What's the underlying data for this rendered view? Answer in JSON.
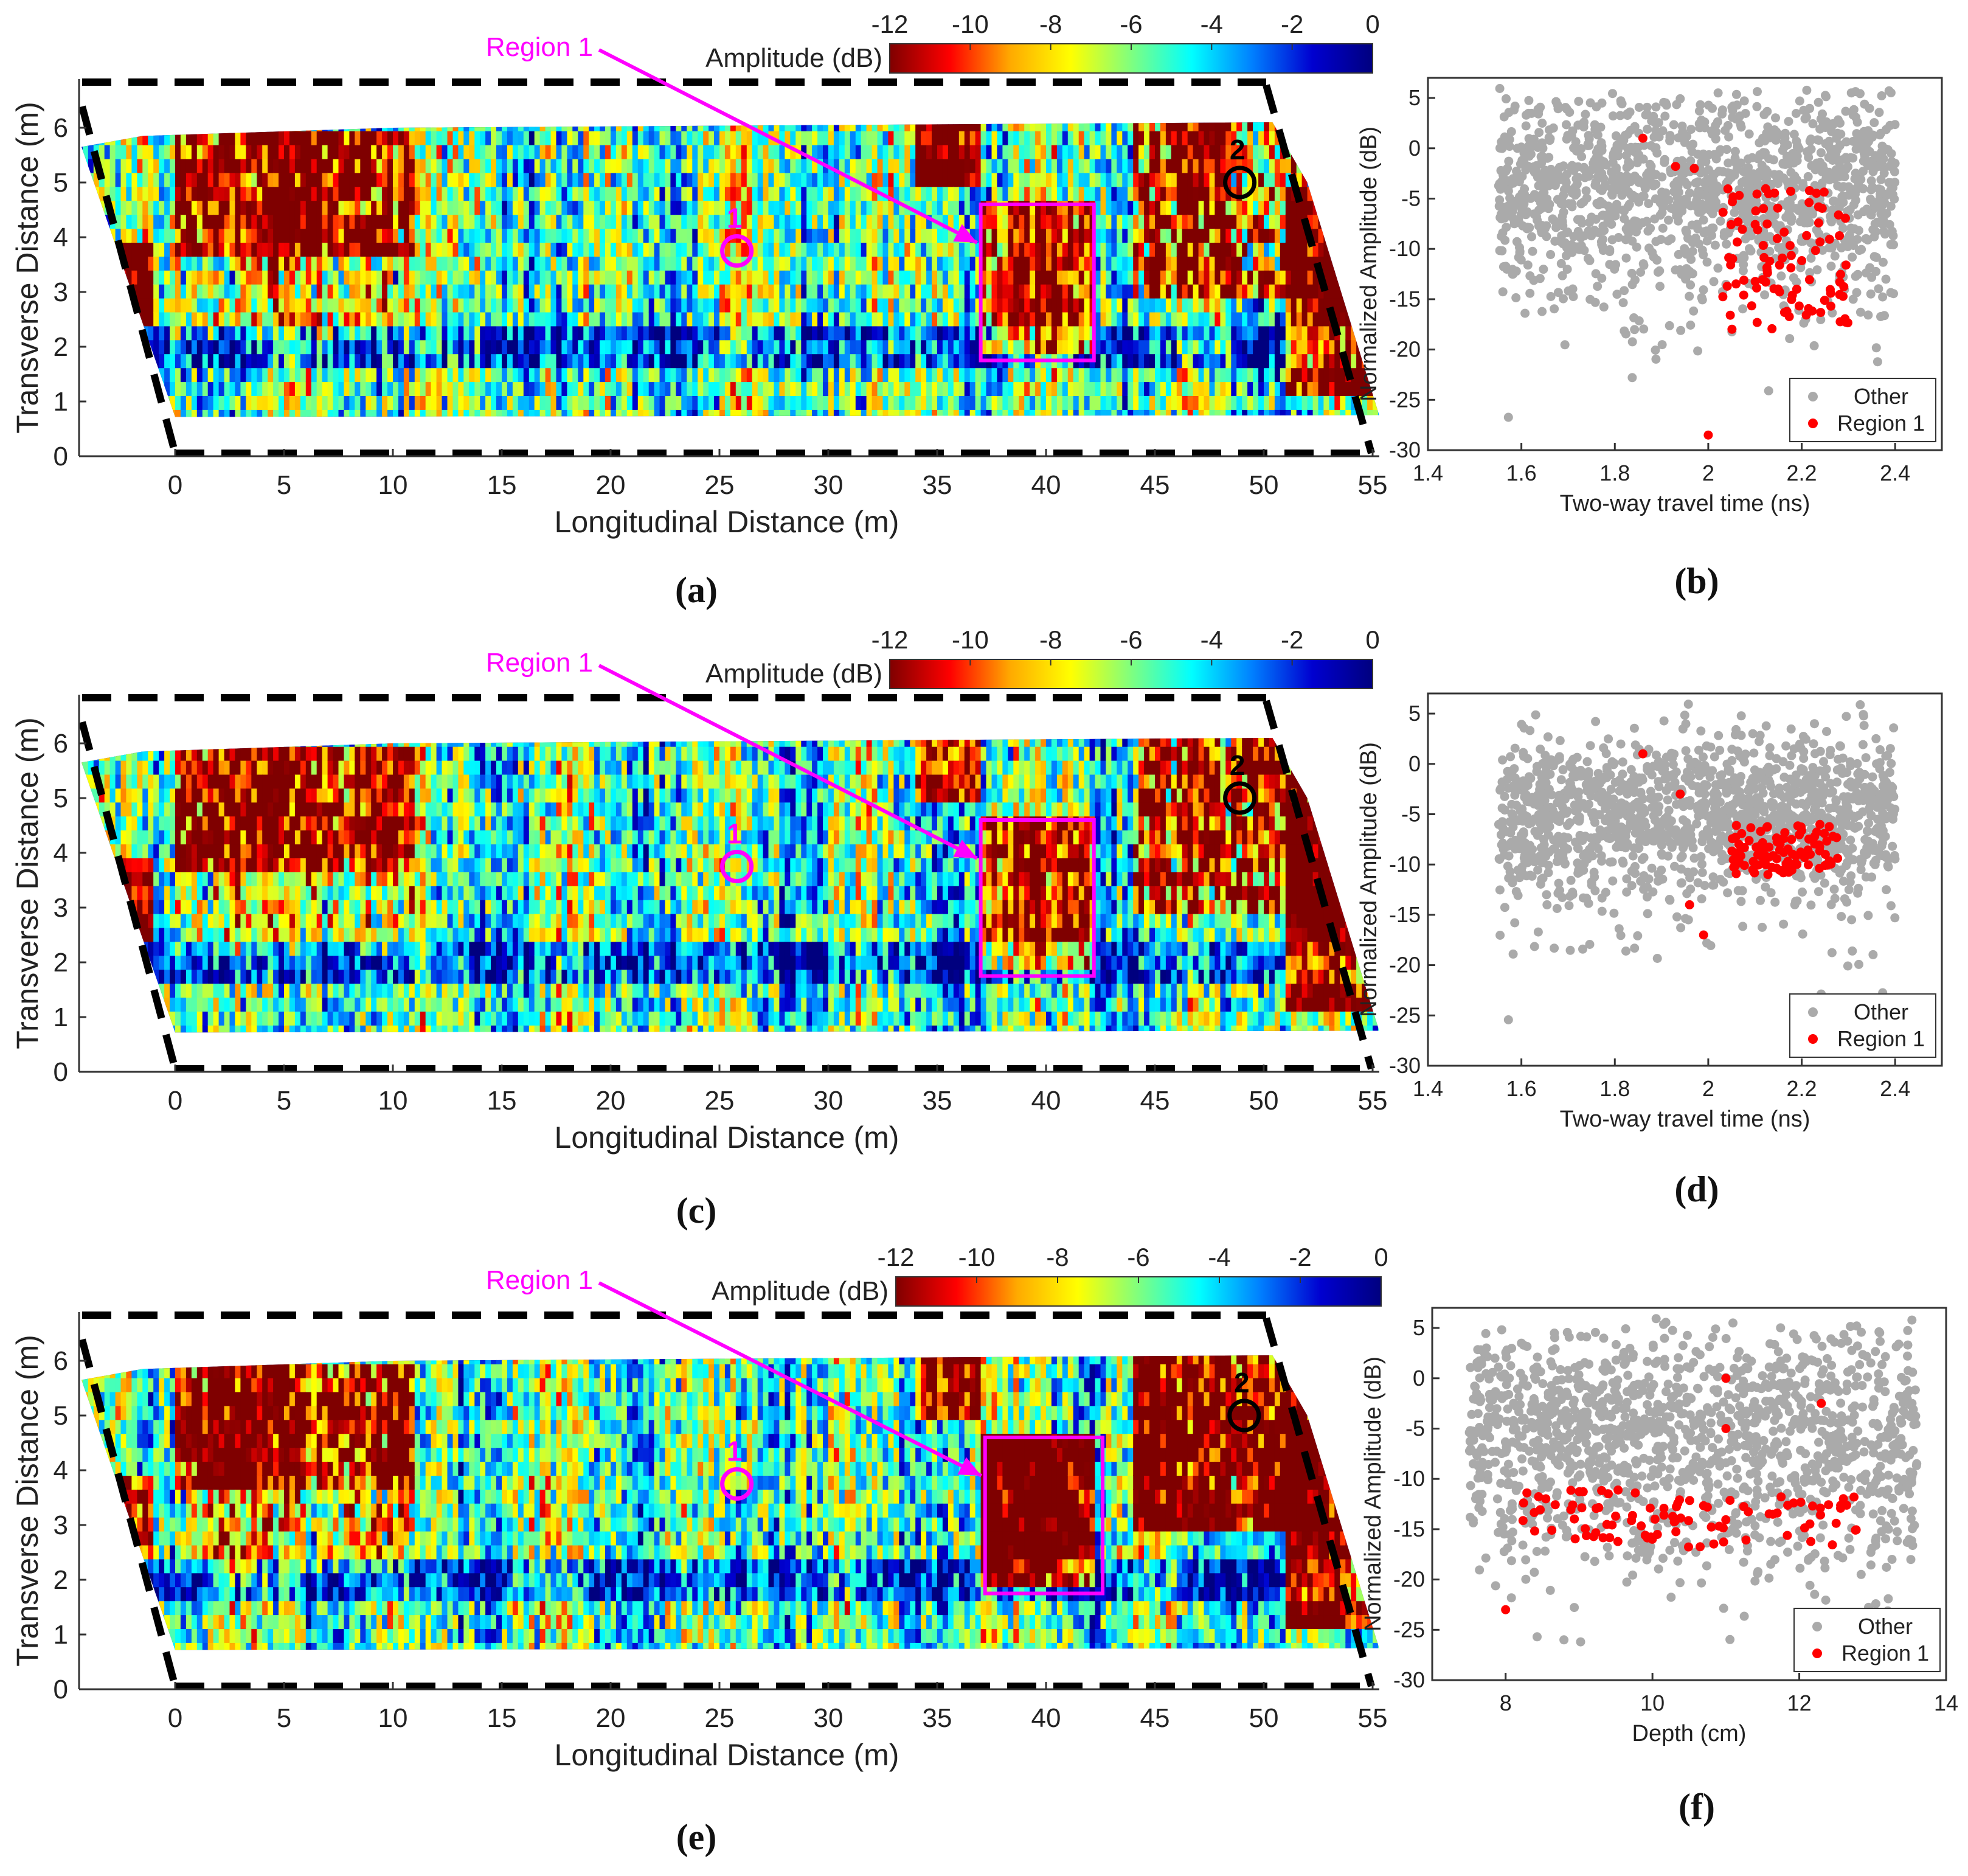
{
  "colors": {
    "colormap": [
      "#7f0000",
      "#ff0000",
      "#ffaa00",
      "#ffff00",
      "#7fff7f",
      "#00ffff",
      "#0080ff",
      "#0000d0",
      "#00007f"
    ],
    "annotation": "#ff00ff",
    "other_points": "#aaaaaa",
    "region_points": "#ff0000",
    "dashed_outline": "#000000"
  },
  "panels": [
    "(a)",
    "(b)",
    "(c)",
    "(d)",
    "(e)",
    "(f)"
  ],
  "chart_data": [
    {
      "id": "a",
      "type": "heatmap",
      "label": "(a)",
      "xlabel": "Longitudinal Distance (m)",
      "ylabel": "Transverse Distance (m)",
      "xticks": [
        0,
        5,
        10,
        15,
        20,
        25,
        30,
        35,
        40,
        45,
        50,
        55
      ],
      "yticks": [
        0,
        1,
        2,
        3,
        4,
        5,
        6
      ],
      "xlim": [
        -4.5,
        55.5
      ],
      "ylim": [
        0,
        6.6
      ],
      "colorbar": {
        "label": "Amplitude (dB)",
        "ticks": [
          -12,
          -10,
          -8,
          -6,
          -4,
          -2,
          0
        ],
        "range": [
          -12,
          0
        ]
      },
      "annotations": {
        "region": "Region 1",
        "point1": "1",
        "point2": "2"
      },
      "region_box": {
        "x": [
          37,
          42.2
        ],
        "y": [
          1.75,
          4.6
        ]
      },
      "point1": {
        "x": 25.8,
        "y": 3.75
      },
      "point2": {
        "x": 48.9,
        "y": 5.0
      }
    },
    {
      "id": "b",
      "type": "scatter",
      "label": "(b)",
      "xlabel": "Two-way travel time (ns)",
      "ylabel": "Normalized Amplitude (dB)",
      "xticks": [
        "1.4",
        "1.6",
        "1.8",
        "2",
        "2.2",
        "2.4"
      ],
      "yticks": [
        5,
        0,
        -5,
        -10,
        -15,
        -20,
        -25,
        -30
      ],
      "xlim": [
        1.4,
        2.5
      ],
      "ylim": [
        -30,
        7
      ],
      "legend": {
        "position": "bottom-right",
        "entries": [
          "Other",
          "Region 1"
        ]
      },
      "other": {
        "x_range": [
          1.55,
          2.4
        ],
        "center_y": -4,
        "spread_y": 5
      },
      "region1": {
        "x_range": [
          2.03,
          2.3
        ],
        "y_range": [
          -18,
          -4
        ],
        "outliers": [
          [
            1.86,
            1
          ],
          [
            1.93,
            -1.8
          ],
          [
            1.97,
            -2
          ],
          [
            2.0,
            -28.5
          ]
        ]
      }
    },
    {
      "id": "c",
      "type": "heatmap",
      "label": "(c)",
      "xlabel": "Longitudinal Distance (m)",
      "ylabel": "Transverse Distance (m)",
      "xticks": [
        0,
        5,
        10,
        15,
        20,
        25,
        30,
        35,
        40,
        45,
        50,
        55
      ],
      "yticks": [
        0,
        1,
        2,
        3,
        4,
        5,
        6
      ],
      "xlim": [
        -4.5,
        55.5
      ],
      "ylim": [
        0,
        6.6
      ],
      "colorbar": {
        "label": "Amplitude (dB)",
        "ticks": [
          -12,
          -10,
          -8,
          -6,
          -4,
          -2,
          0
        ],
        "range": [
          -12,
          0
        ]
      },
      "annotations": {
        "region": "Region 1",
        "point1": "1",
        "point2": "2"
      },
      "region_box": {
        "x": [
          37,
          42.2
        ],
        "y": [
          1.75,
          4.6
        ]
      },
      "point1": {
        "x": 25.8,
        "y": 3.75
      },
      "point2": {
        "x": 48.9,
        "y": 5.0
      }
    },
    {
      "id": "d",
      "type": "scatter",
      "label": "(d)",
      "xlabel": "Two-way travel time (ns)",
      "ylabel": "Normalized Amplitude (dB)",
      "xticks": [
        "1.4",
        "1.6",
        "1.8",
        "2",
        "2.2",
        "2.4"
      ],
      "yticks": [
        5,
        0,
        -5,
        -10,
        -15,
        -20,
        -25,
        -30
      ],
      "xlim": [
        1.4,
        2.5
      ],
      "ylim": [
        -30,
        7
      ],
      "legend": {
        "position": "bottom-right",
        "entries": [
          "Other",
          "Region 1"
        ]
      },
      "other": {
        "x_range": [
          1.55,
          2.4
        ],
        "center_y": -5,
        "spread_y": 4
      },
      "region1": {
        "x_range": [
          2.05,
          2.28
        ],
        "y_range": [
          -11,
          -6
        ],
        "outliers": [
          [
            1.86,
            1
          ],
          [
            1.94,
            -3
          ],
          [
            1.96,
            -14
          ],
          [
            1.99,
            -17
          ]
        ]
      }
    },
    {
      "id": "e",
      "type": "heatmap",
      "label": "(e)",
      "xlabel": "Longitudinal Distance (m)",
      "ylabel": "Transverse Distance (m)",
      "xticks": [
        0,
        5,
        10,
        15,
        20,
        25,
        30,
        35,
        40,
        45,
        50,
        55
      ],
      "yticks": [
        0,
        1,
        2,
        3,
        4,
        5,
        6
      ],
      "xlim": [
        -4.5,
        55.5
      ],
      "ylim": [
        0,
        6.6
      ],
      "colorbar": {
        "label": "Amplitude (dB)",
        "ticks": [
          -12,
          -10,
          -8,
          -6,
          -4,
          -2,
          0
        ],
        "range": [
          -12,
          0
        ]
      },
      "annotations": {
        "region": "Region 1",
        "point1": "1",
        "point2": "2"
      },
      "region_box": {
        "x": [
          37.2,
          42.6
        ],
        "y": [
          1.75,
          4.6
        ]
      },
      "point1": {
        "x": 25.8,
        "y": 3.75
      },
      "point2": {
        "x": 49.1,
        "y": 5.0
      }
    },
    {
      "id": "f",
      "type": "scatter",
      "label": "(f)",
      "xlabel": "Depth (cm)",
      "ylabel": "Normalized Amplitude (dB)",
      "xticks": [
        "8",
        "10",
        "12",
        "14"
      ],
      "yticks": [
        5,
        0,
        -5,
        -10,
        -15,
        -20,
        -25,
        -30
      ],
      "xlim": [
        7,
        14
      ],
      "ylim": [
        -30,
        7
      ],
      "legend": {
        "position": "bottom-right",
        "entries": [
          "Other",
          "Region 1"
        ]
      },
      "other": {
        "x_range": [
          7.5,
          13.6
        ],
        "center_y": -6,
        "spread_y": 6
      },
      "region1": {
        "x_range": [
          8.2,
          12.8
        ],
        "y_range": [
          -17,
          -11
        ],
        "outliers": [
          [
            11,
            0
          ],
          [
            11,
            -5
          ],
          [
            12.3,
            -2.5
          ],
          [
            8,
            -23
          ]
        ]
      }
    }
  ]
}
